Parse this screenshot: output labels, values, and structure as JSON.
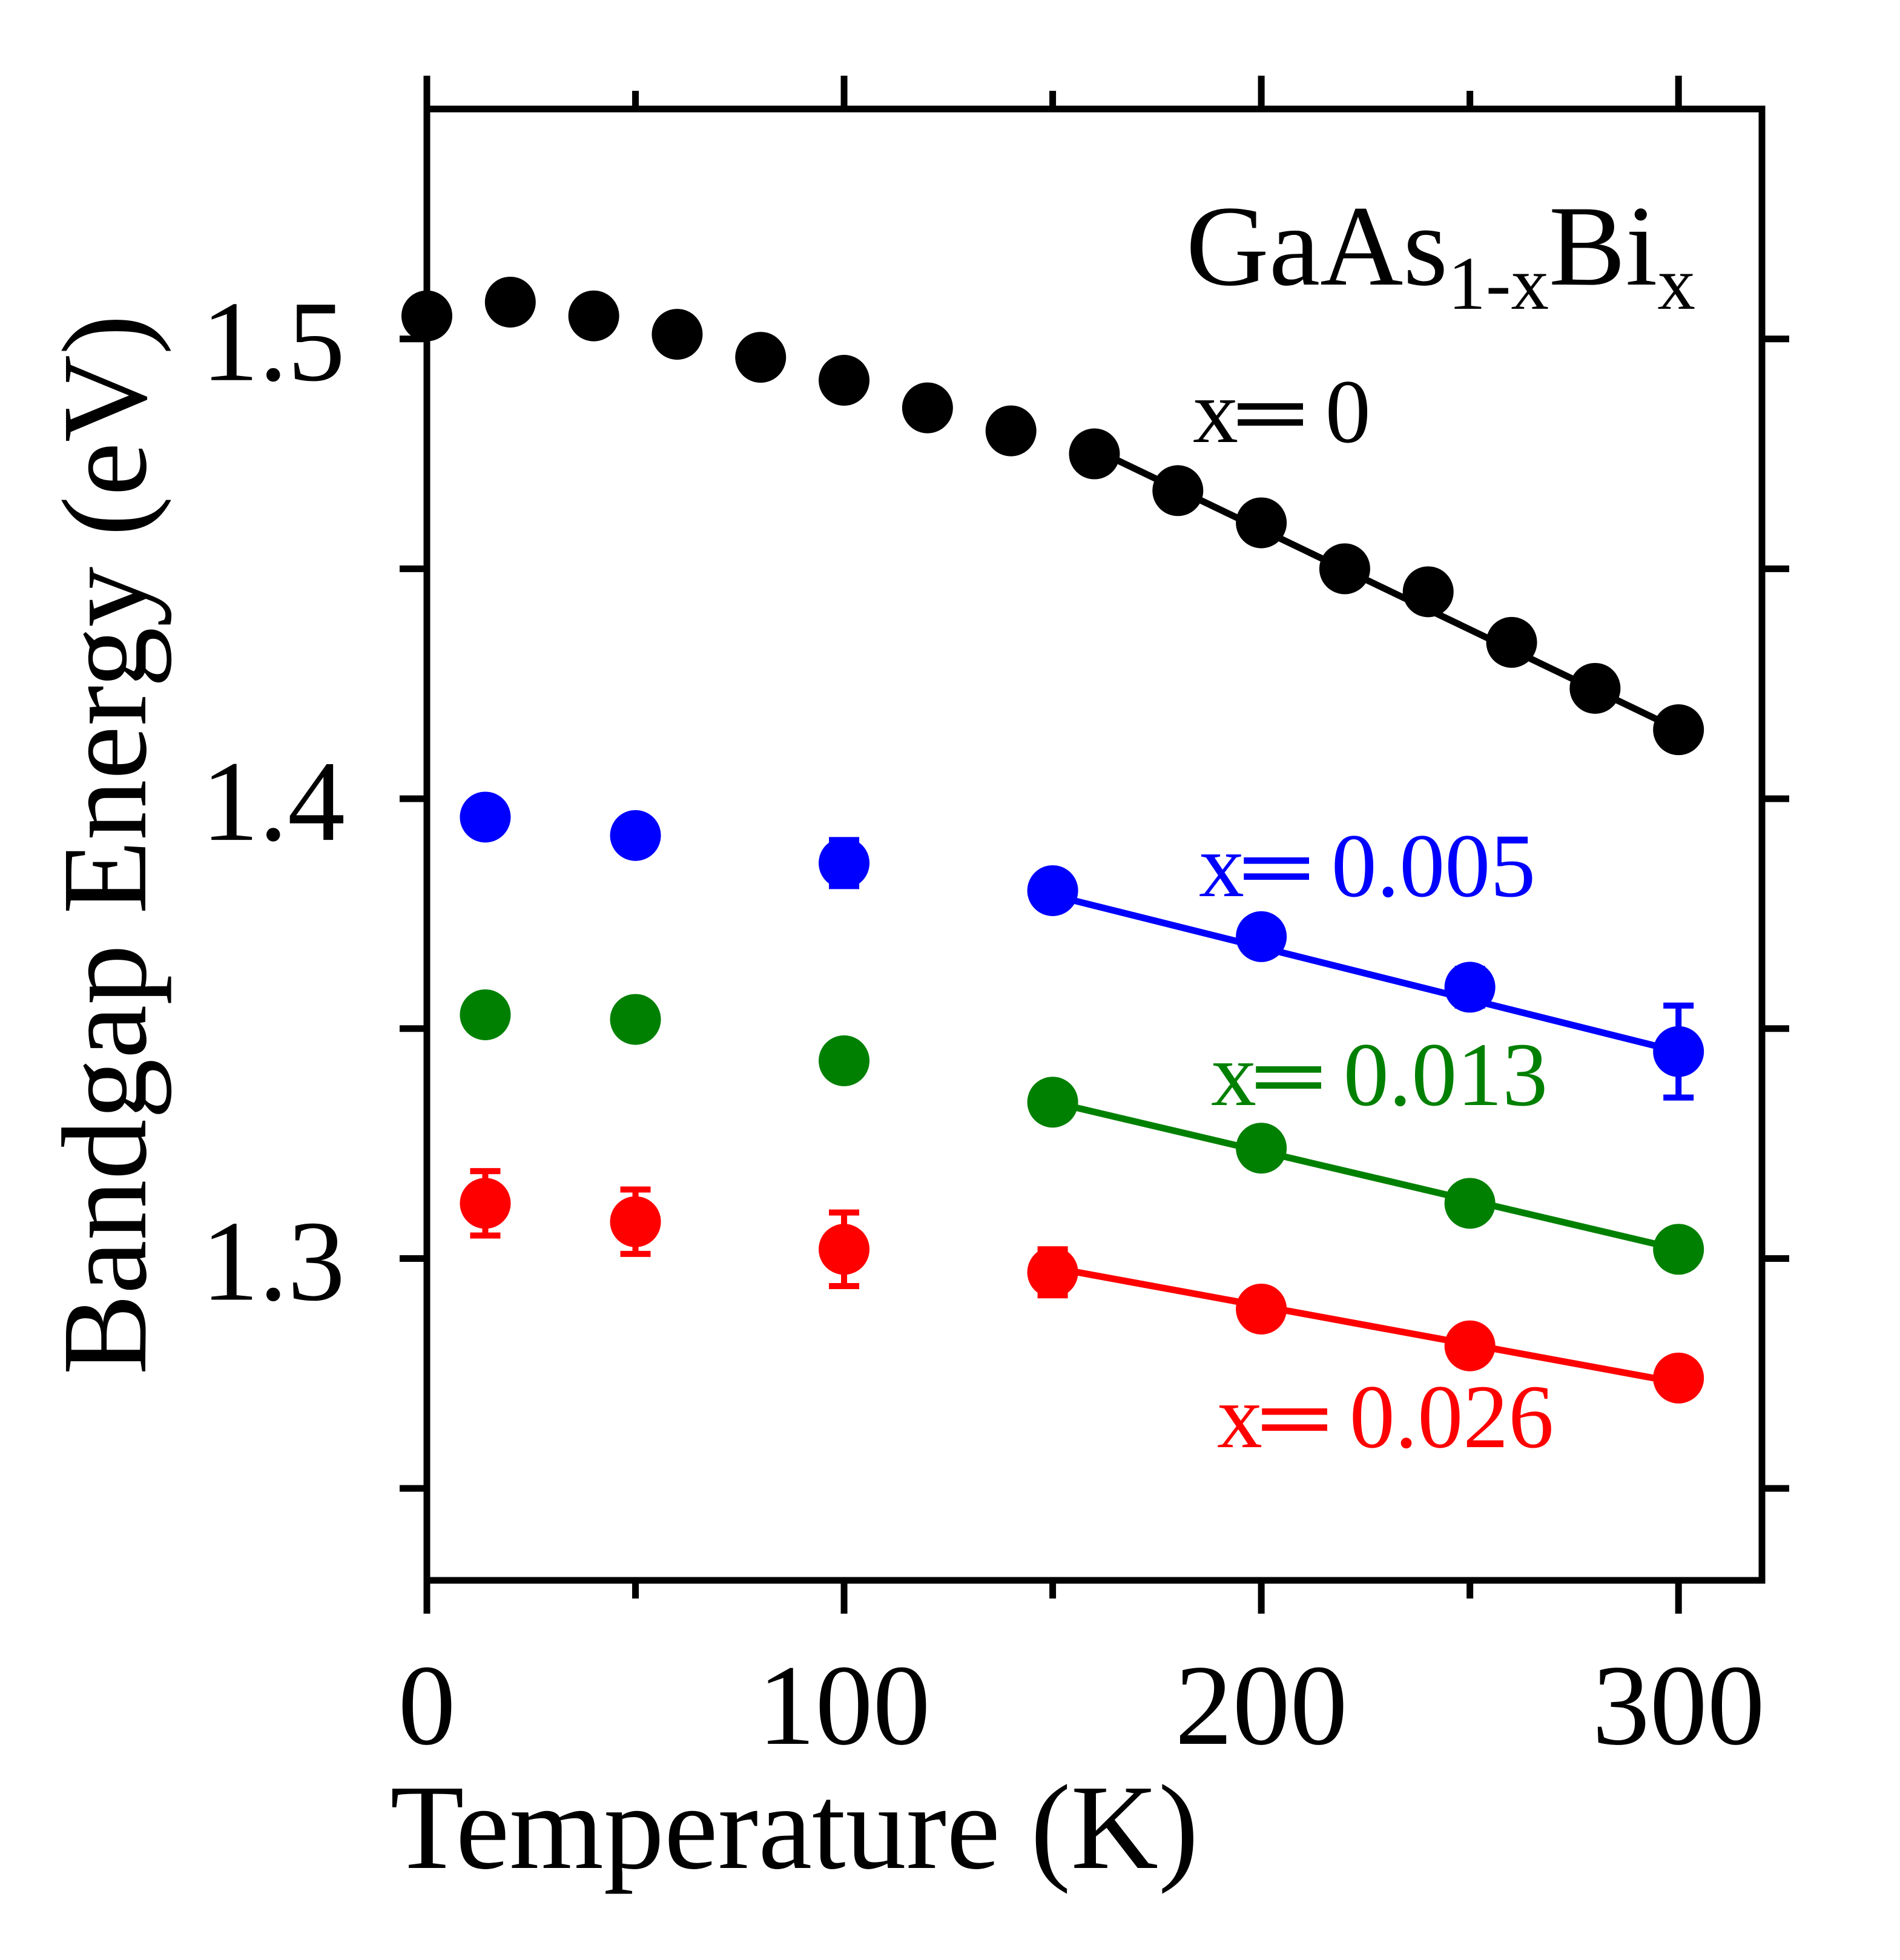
{
  "chart_data": {
    "type": "scatter",
    "title": "",
    "xlabel": "Temperature (K)",
    "ylabel": "Bandgap Energy (eV)",
    "xlim": [
      0,
      320
    ],
    "ylim": [
      1.23,
      1.55
    ],
    "x_ticks": [
      0,
      100,
      200,
      300
    ],
    "x_tick_labels": [
      "0",
      "100",
      "200",
      "300"
    ],
    "x_minor_ticks": [
      50,
      150,
      250
    ],
    "y_ticks": [
      1.3,
      1.4,
      1.5
    ],
    "y_tick_labels": [
      "1.3",
      "1.4",
      "1.5"
    ],
    "y_minor_ticks": [
      1.25,
      1.35,
      1.45
    ],
    "grid": false,
    "annotation": {
      "base": "GaAs",
      "sub1": "1-x",
      "mid": "Bi",
      "sub2": "x"
    },
    "series": [
      {
        "name": "x=0",
        "label": "x═ 0",
        "color": "#000000",
        "x": [
          0,
          20,
          40,
          60,
          80,
          100,
          120,
          140,
          160,
          180,
          200,
          220,
          240,
          260,
          280,
          300
        ],
        "y": [
          1.505,
          1.508,
          1.505,
          1.501,
          1.496,
          1.491,
          1.485,
          1.48,
          1.475,
          1.467,
          1.46,
          1.45,
          1.445,
          1.434,
          1.424,
          1.415
        ],
        "err": [
          0,
          0,
          0,
          0,
          0,
          0,
          0,
          0,
          0,
          0,
          0,
          0,
          0,
          0,
          0,
          0
        ],
        "fit_x": [
          160,
          300
        ],
        "fit_y": [
          1.476,
          1.415
        ]
      },
      {
        "name": "x=0.005",
        "label": "x═ 0.005",
        "color": "#0000ff",
        "x": [
          14,
          50,
          100,
          150,
          200,
          250,
          300
        ],
        "y": [
          1.396,
          1.392,
          1.386,
          1.38,
          1.37,
          1.359,
          1.345
        ],
        "err": [
          0,
          0.003,
          0.005,
          0,
          0,
          0.004,
          0.01
        ],
        "fit_x": [
          150,
          300
        ],
        "fit_y": [
          1.379,
          1.345
        ]
      },
      {
        "name": "x=0.013",
        "label": "x═ 0.013",
        "color": "#008000",
        "x": [
          14,
          50,
          100,
          150,
          200,
          250,
          300
        ],
        "y": [
          1.353,
          1.352,
          1.343,
          1.334,
          1.324,
          1.312,
          1.302
        ],
        "err": [
          0,
          0,
          0,
          0,
          0,
          0,
          0
        ],
        "fit_x": [
          150,
          300
        ],
        "fit_y": [
          1.334,
          1.302
        ]
      },
      {
        "name": "x=0.026",
        "label": "x═ 0.026",
        "color": "#ff0000",
        "x": [
          14,
          50,
          100,
          150,
          200,
          250,
          300
        ],
        "y": [
          1.312,
          1.308,
          1.302,
          1.297,
          1.289,
          1.281,
          1.274
        ],
        "err": [
          0.007,
          0.007,
          0.008,
          0.005,
          0,
          0,
          0
        ],
        "fit_x": [
          150,
          300
        ],
        "fit_y": [
          1.298,
          1.273
        ]
      }
    ]
  }
}
